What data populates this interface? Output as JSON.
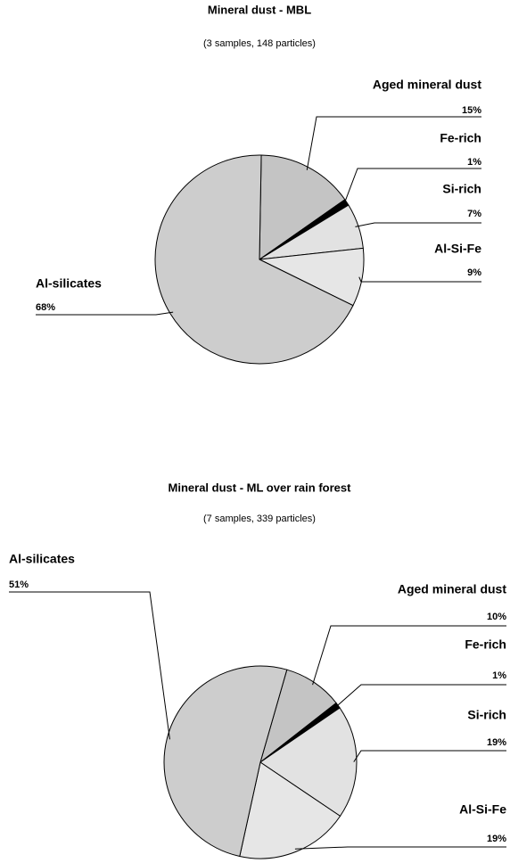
{
  "chart_data": [
    {
      "type": "pie",
      "title": "Mineral dust - MBL",
      "subtitle": "(3 samples, 148 particles)",
      "categories": [
        "Aged mineral dust",
        "Fe-rich",
        "Si-rich",
        "Al-Si-Fe",
        "Al-silicates"
      ],
      "values": [
        15,
        1,
        7,
        9,
        68
      ],
      "value_labels": [
        "15%",
        "1%",
        "7%",
        "9%",
        "68%"
      ],
      "colors": [
        "#c4c4c4",
        "#000000",
        "#e2e2e2",
        "#e6e6e6",
        "#cdcdcd"
      ]
    },
    {
      "type": "pie",
      "title": "Mineral dust - ML over rain forest",
      "subtitle": "(7 samples, 339 particles)",
      "categories": [
        "Aged mineral dust",
        "Fe-rich",
        "Si-rich",
        "Al-Si-Fe",
        "Al-silicates"
      ],
      "values": [
        10,
        1,
        19,
        19,
        51
      ],
      "value_labels": [
        "10%",
        "1%",
        "19%",
        "19%",
        "51%"
      ],
      "colors": [
        "#c4c4c4",
        "#000000",
        "#e2e2e2",
        "#e6e6e6",
        "#cdcdcd"
      ]
    }
  ]
}
